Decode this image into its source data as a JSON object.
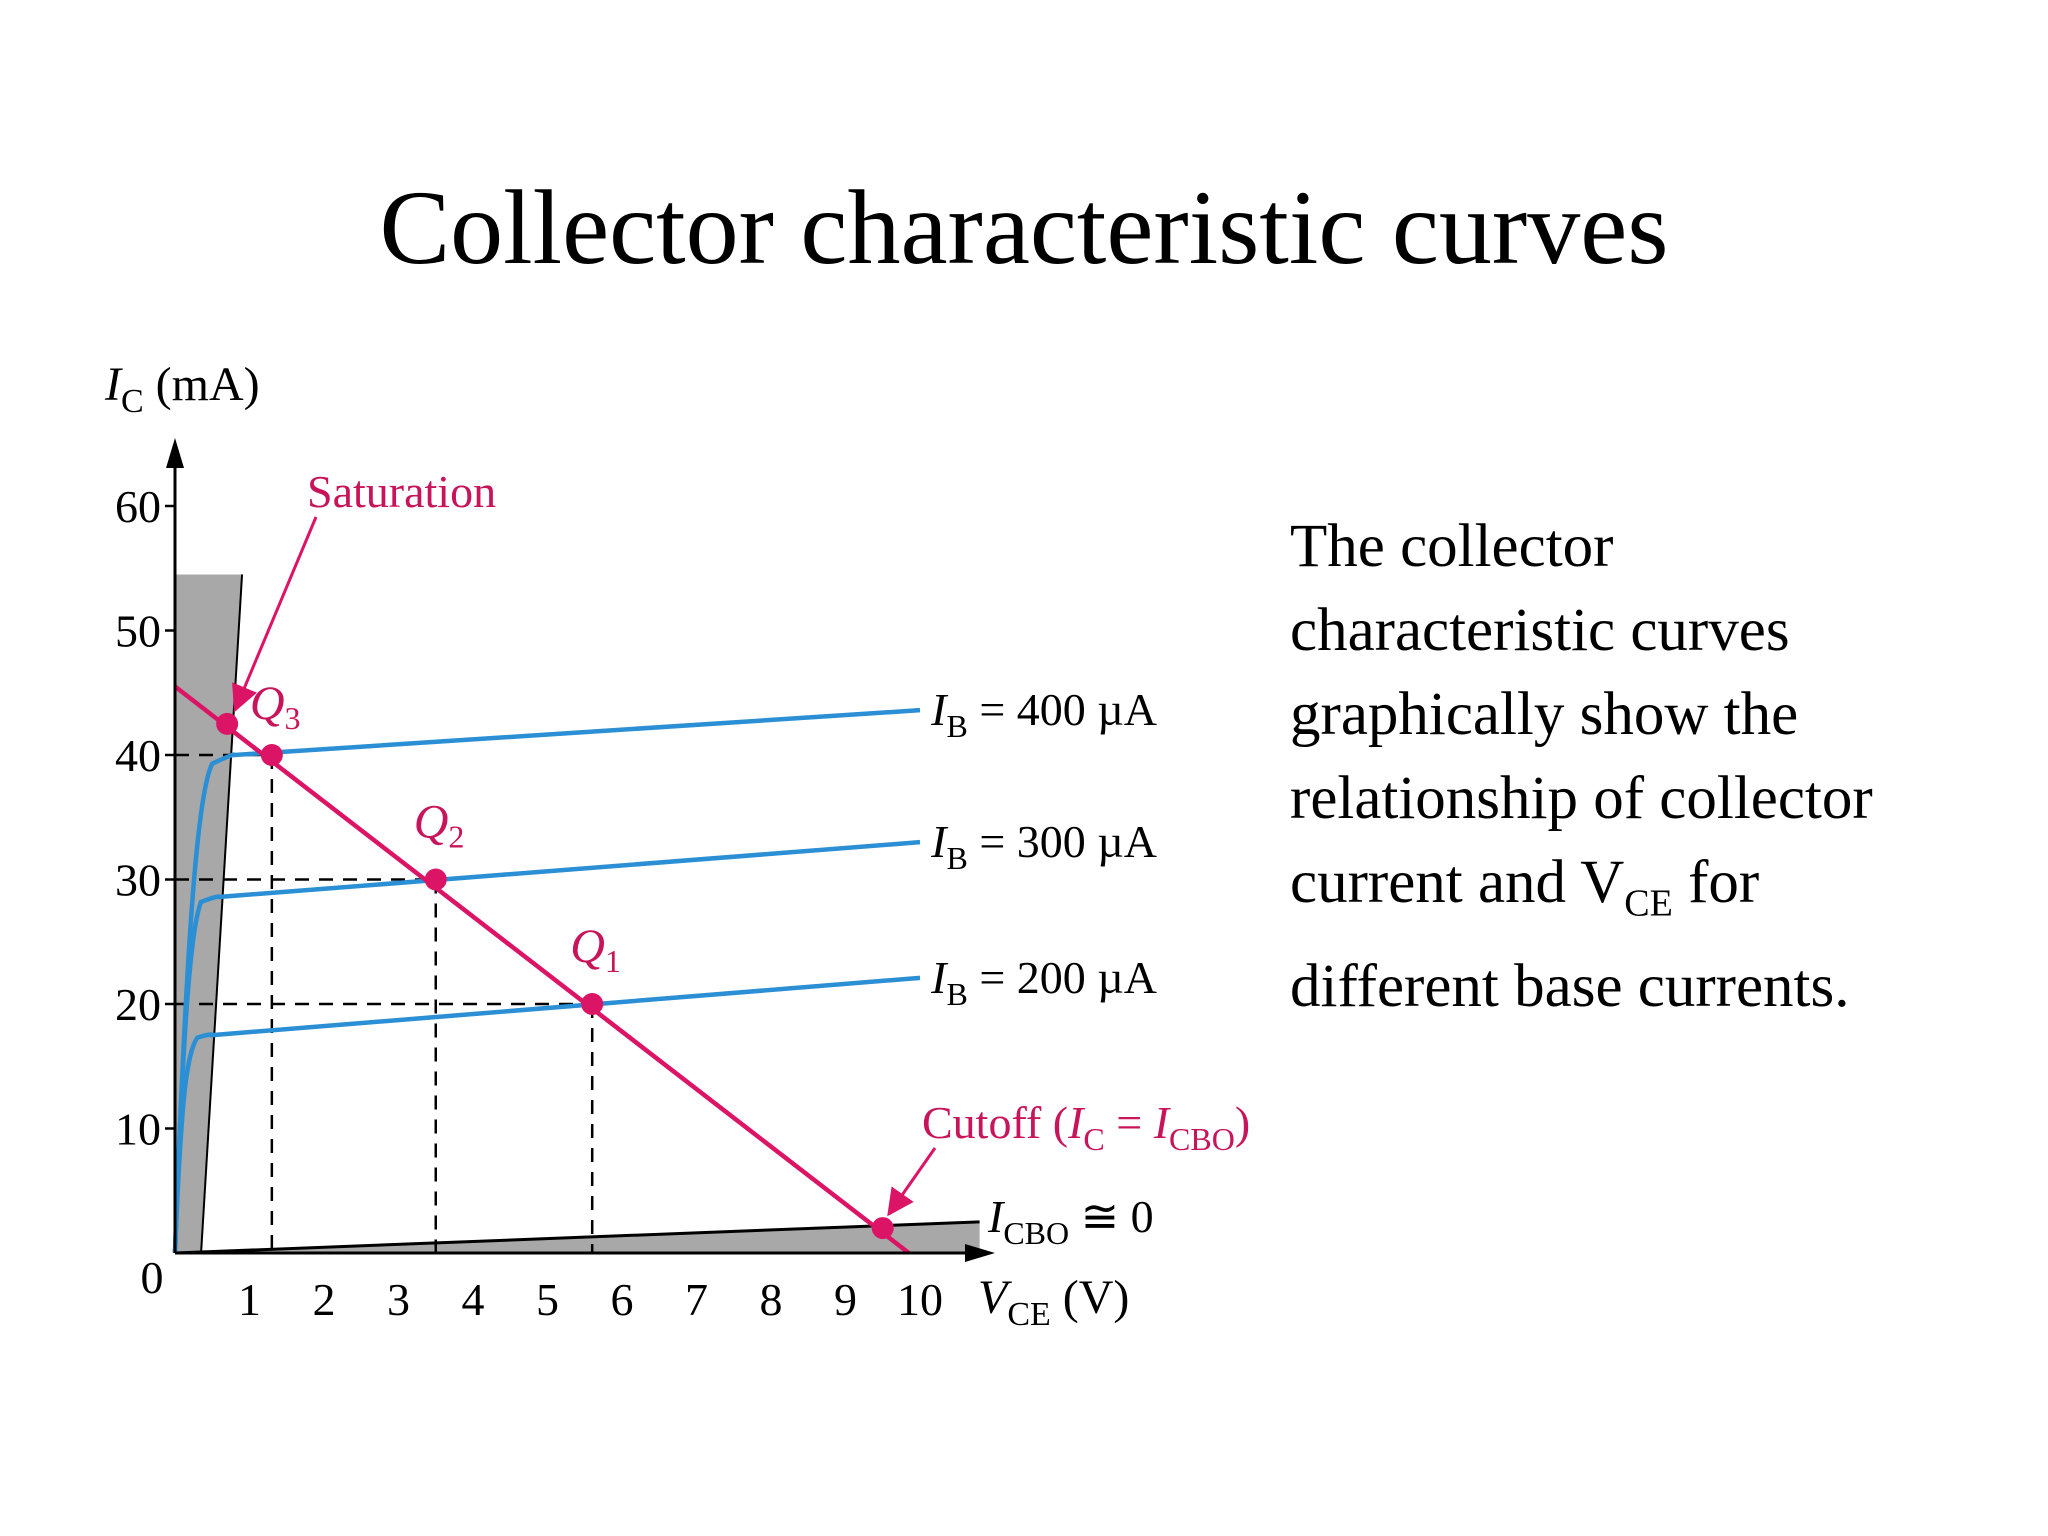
{
  "slide": {
    "title": "Collector characteristic curves",
    "description": {
      "line1": "The collector",
      "line2": "characteristic curves",
      "line3": "graphically show the",
      "line4": "relationship of collector",
      "line5_pre": "current and V",
      "line5_sub": "CE",
      "line5_post": " for",
      "line6": "different base currents."
    }
  },
  "chart_data": {
    "type": "line",
    "y_axis": {
      "symbol": "I",
      "sub": "C",
      "unit": "(mA)",
      "ticks": [
        10,
        20,
        30,
        40,
        50,
        60
      ],
      "range": [
        0,
        65
      ]
    },
    "x_axis": {
      "symbol": "V",
      "sub": "CE",
      "unit": "(V)",
      "ticks": [
        1,
        2,
        3,
        4,
        5,
        6,
        7,
        8,
        9,
        10
      ],
      "range": [
        0,
        11
      ]
    },
    "origin_label": "0",
    "series": [
      {
        "name": "I_B = 400 µA",
        "label_main": "I",
        "label_sub": "B",
        "label_rest": " = 400 µA",
        "x": [
          0,
          0.15,
          0.3,
          0.5,
          0.8,
          10
        ],
        "y": [
          0,
          25,
          37,
          39.3,
          40.0,
          43.6
        ]
      },
      {
        "name": "I_B = 300 µA",
        "label_main": "I",
        "label_sub": "B",
        "label_rest": " = 300 µA",
        "x": [
          0,
          0.1,
          0.2,
          0.35,
          0.6,
          10
        ],
        "y": [
          0,
          17,
          26,
          28.2,
          28.6,
          33.0
        ]
      },
      {
        "name": "I_B = 200 µA",
        "label_main": "I",
        "label_sub": "B",
        "label_rest": " = 200 µA",
        "x": [
          0,
          0.08,
          0.15,
          0.3,
          0.5,
          10
        ],
        "y": [
          0,
          12,
          16,
          17.3,
          17.5,
          22.1
        ]
      }
    ],
    "load_line": {
      "x": [
        0,
        9.85
      ],
      "y": [
        45.5,
        0
      ]
    },
    "operating_points": [
      {
        "name": "Q1",
        "letter": "Q",
        "sub": "1",
        "x": 5.6,
        "y": 20.0
      },
      {
        "name": "Q2",
        "letter": "Q",
        "sub": "2",
        "x": 3.5,
        "y": 30.0
      },
      {
        "name": "Q3",
        "letter": "Q",
        "sub": "3",
        "x": 1.3,
        "y": 40.0
      },
      {
        "name": "saturation-point",
        "x": 0.7,
        "y": 42.5
      },
      {
        "name": "cutoff-point",
        "x": 9.5,
        "y": 2.0
      }
    ],
    "annotations": {
      "saturation": "Saturation",
      "cutoff_pre": "Cutoff (",
      "cutoff_i1": "I",
      "cutoff_s1": "C",
      "cutoff_eq": " = ",
      "cutoff_i2": "I",
      "cutoff_s2": "CBO",
      "cutoff_post": ")",
      "icbo_main": "I",
      "icbo_sub": "CBO",
      "icbo_rest": " ≅ 0"
    },
    "colors": {
      "curves": "#2a8fd4",
      "load_line": "#dc1466",
      "annotation": "#c8145a",
      "shade": "#a8a8a8"
    }
  }
}
